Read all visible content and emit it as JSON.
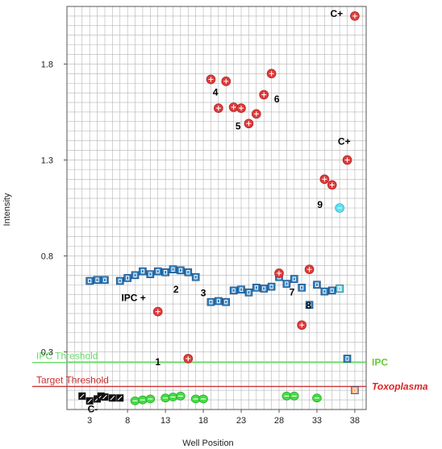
{
  "chart_data": {
    "type": "scatter",
    "xlabel": "Well Position",
    "ylabel": "Intensity",
    "xlim": [
      0,
      39.5
    ],
    "ylim": [
      0,
      2.1
    ],
    "x_ticks": [
      3,
      8,
      13,
      18,
      23,
      28,
      33,
      38
    ],
    "y_ticks": [
      0.3,
      0.8,
      1.3,
      1.8
    ],
    "y_tick_labels": [
      "0.3",
      "0.8",
      "1.3",
      "1.8"
    ],
    "grid": true,
    "thresholds": [
      {
        "label": "IPC Threshold",
        "value": 0.245,
        "color": "#66dd66",
        "side_label": "IPC",
        "side_color": "#66cc33",
        "side_italic": false
      },
      {
        "label": "Target Threshold",
        "value": 0.12,
        "color": "#cc3333",
        "side_label": "Toxoplasma",
        "side_color": "#dd2222",
        "side_italic": true
      }
    ],
    "series": [
      {
        "marker": "ipc-square",
        "color": "#2f7fbf",
        "points": [
          [
            3,
            0.67
          ],
          [
            4,
            0.675
          ],
          [
            5,
            0.675
          ],
          [
            7,
            0.67
          ],
          [
            8,
            0.685
          ],
          [
            9,
            0.7
          ],
          [
            10,
            0.72
          ],
          [
            11,
            0.705
          ],
          [
            12,
            0.72
          ],
          [
            13,
            0.715
          ],
          [
            14,
            0.73
          ],
          [
            15,
            0.725
          ],
          [
            16,
            0.715
          ],
          [
            17,
            0.69
          ],
          [
            19,
            0.56
          ],
          [
            20,
            0.565
          ],
          [
            21,
            0.56
          ],
          [
            22,
            0.62
          ],
          [
            23,
            0.625
          ],
          [
            24,
            0.61
          ],
          [
            25,
            0.635
          ],
          [
            26,
            0.63
          ],
          [
            27,
            0.64
          ],
          [
            28,
            0.69
          ],
          [
            29,
            0.655
          ],
          [
            30,
            0.68
          ],
          [
            31,
            0.635
          ],
          [
            32,
            0.545
          ],
          [
            33,
            0.65
          ],
          [
            34,
            0.615
          ],
          [
            35,
            0.62
          ],
          [
            37,
            0.265
          ]
        ]
      },
      {
        "marker": "target-circle",
        "color": "#e03a3a",
        "points": [
          [
            12,
            0.51
          ],
          [
            16,
            0.265
          ],
          [
            19,
            1.72
          ],
          [
            20,
            1.57
          ],
          [
            21,
            1.71
          ],
          [
            22,
            1.575
          ],
          [
            23,
            1.57
          ],
          [
            24,
            1.49
          ],
          [
            25,
            1.54
          ],
          [
            26,
            1.64
          ],
          [
            27,
            1.75
          ],
          [
            28,
            0.71
          ],
          [
            31,
            0.44
          ],
          [
            32,
            0.73
          ],
          [
            34,
            1.2
          ],
          [
            35,
            1.17
          ],
          [
            37,
            1.3
          ],
          [
            38,
            2.05
          ]
        ]
      },
      {
        "marker": "ipc-circle",
        "color": "#44dd44",
        "points": [
          [
            9,
            0.045
          ],
          [
            10,
            0.05
          ],
          [
            11,
            0.055
          ],
          [
            13,
            0.06
          ],
          [
            14,
            0.065
          ],
          [
            15,
            0.07
          ],
          [
            17,
            0.055
          ],
          [
            18,
            0.055
          ],
          [
            29,
            0.07
          ],
          [
            30,
            0.07
          ],
          [
            33,
            0.06
          ]
        ]
      },
      {
        "marker": "neg-square",
        "color": "#111111",
        "points": [
          [
            2,
            0.07
          ],
          [
            3,
            0.045
          ],
          [
            4,
            0.055
          ],
          [
            4.5,
            0.07
          ],
          [
            5,
            0.065
          ],
          [
            6,
            0.06
          ],
          [
            7,
            0.06
          ]
        ]
      },
      {
        "marker": "cyan-circle",
        "color": "#5ce0f0",
        "points": [
          [
            36,
            1.05
          ]
        ]
      },
      {
        "marker": "cyan-square",
        "color": "#5ce0f0",
        "points": [
          [
            36,
            0.63
          ]
        ]
      },
      {
        "marker": "orange-square",
        "color": "#f0a070",
        "points": [
          [
            38,
            0.1
          ]
        ]
      }
    ],
    "annotations": [
      {
        "text": "C+",
        "x": 35.6,
        "y": 2.045
      },
      {
        "text": "4",
        "x": 19.6,
        "y": 1.635
      },
      {
        "text": "6",
        "x": 27.7,
        "y": 1.6
      },
      {
        "text": "5",
        "x": 22.6,
        "y": 1.46
      },
      {
        "text": "C+",
        "x": 36.6,
        "y": 1.38
      },
      {
        "text": "9",
        "x": 33.4,
        "y": 1.05
      },
      {
        "text": "IPC +",
        "x": 8.8,
        "y": 0.565
      },
      {
        "text": "2",
        "x": 14.4,
        "y": 0.61
      },
      {
        "text": "3",
        "x": 18.0,
        "y": 0.59
      },
      {
        "text": "7",
        "x": 29.7,
        "y": 0.595
      },
      {
        "text": "8",
        "x": 31.9,
        "y": 0.525
      },
      {
        "text": "1",
        "x": 12.0,
        "y": 0.23
      },
      {
        "text": "C-",
        "x": 3.4,
        "y": -0.015
      }
    ]
  }
}
